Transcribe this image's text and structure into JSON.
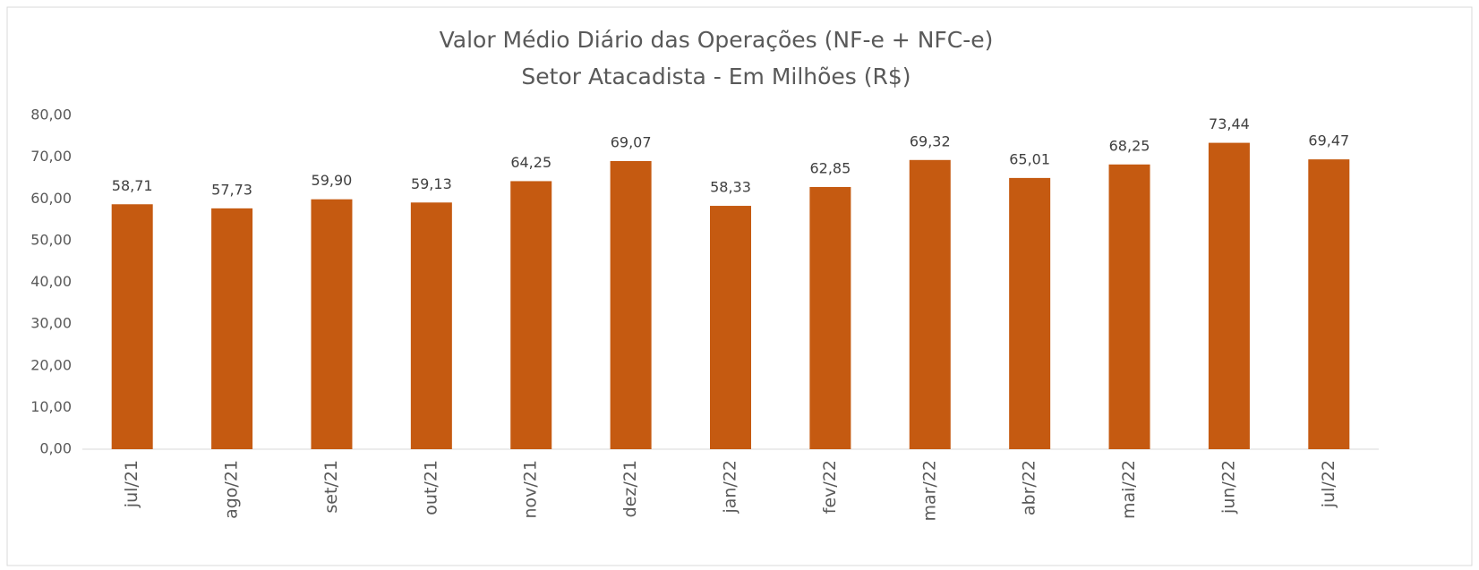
{
  "chart_data": {
    "type": "bar",
    "title": "Valor Médio Diário das Operações (NF-e + NFC-e)",
    "subtitle": "Setor Atacadista - Em Milhões (R$)",
    "categories": [
      "jul/21",
      "ago/21",
      "set/21",
      "out/21",
      "nov/21",
      "dez/21",
      "jan/22",
      "fev/22",
      "mar/22",
      "abr/22",
      "mai/22",
      "jun/22",
      "jul/22"
    ],
    "values": [
      58.71,
      57.73,
      59.9,
      59.13,
      64.25,
      69.07,
      58.33,
      62.85,
      69.32,
      65.01,
      68.25,
      73.44,
      69.47
    ],
    "value_labels": [
      "58,71",
      "57,73",
      "59,90",
      "59,13",
      "64,25",
      "69,07",
      "58,33",
      "62,85",
      "69,32",
      "65,01",
      "68,25",
      "73,44",
      "69,47"
    ],
    "color": "#c55a11",
    "ylim": [
      0,
      80
    ],
    "yticks": [
      {
        "value": 0,
        "label": "0,00"
      },
      {
        "value": 10,
        "label": "10,00"
      },
      {
        "value": 20,
        "label": "20,00"
      },
      {
        "value": 30,
        "label": "30,00"
      },
      {
        "value": 40,
        "label": "40,00"
      },
      {
        "value": 50,
        "label": "50,00"
      },
      {
        "value": 60,
        "label": "60,00"
      },
      {
        "value": 70,
        "label": "70,00"
      },
      {
        "value": 80,
        "label": "80,00"
      }
    ],
    "grid": false
  }
}
